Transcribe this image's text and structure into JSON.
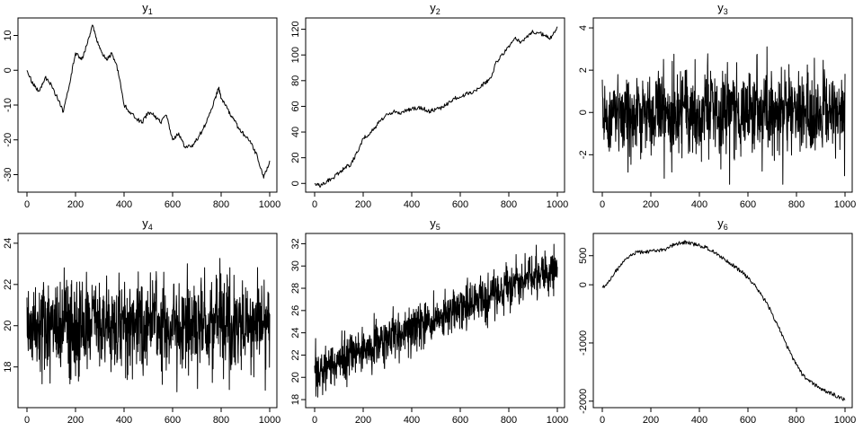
{
  "chart_data": [
    {
      "type": "line",
      "title": "y1",
      "title_main": "y",
      "title_sub": "1",
      "xlim": [
        0,
        1000
      ],
      "ylim": [
        -34,
        14
      ],
      "xticks": [
        0,
        200,
        400,
        600,
        800,
        1000
      ],
      "xtick_labels": [
        "0",
        "200",
        "400",
        "600",
        "800",
        "1000"
      ],
      "yticks": [
        10,
        0,
        -10,
        -20,
        -30
      ],
      "ytick_labels": [
        "10",
        "0",
        "-10",
        "-20",
        "-30"
      ],
      "series": [
        {
          "x": [
            0,
            25,
            50,
            75,
            100,
            125,
            150,
            175,
            200,
            225,
            250,
            270,
            290,
            310,
            330,
            350,
            375,
            400,
            425,
            450,
            475,
            500,
            525,
            550,
            575,
            600,
            625,
            650,
            675,
            700,
            725,
            750,
            775,
            790,
            800,
            825,
            850,
            875,
            900,
            925,
            950,
            975,
            1000
          ],
          "y": [
            0,
            -4,
            -6,
            -2,
            -4,
            -8,
            -12,
            -4,
            5,
            3,
            8,
            13,
            8,
            5,
            3,
            5,
            0,
            -10,
            -12,
            -14,
            -15,
            -12,
            -13,
            -15,
            -13,
            -20,
            -18,
            -22,
            -22,
            -20,
            -17,
            -13,
            -8,
            -5,
            -8,
            -11,
            -14,
            -17,
            -19,
            -21,
            -25,
            -31,
            -26
          ]
        }
      ],
      "grid": false,
      "box": true
    },
    {
      "type": "line",
      "title": "y2",
      "title_main": "y",
      "title_sub": "2",
      "xlim": [
        0,
        1000
      ],
      "ylim": [
        -4,
        126
      ],
      "xticks": [
        0,
        200,
        400,
        600,
        800,
        1000
      ],
      "xtick_labels": [
        "0",
        "200",
        "400",
        "600",
        "800",
        "1000"
      ],
      "yticks": [
        0,
        20,
        40,
        60,
        80,
        100,
        120
      ],
      "ytick_labels": [
        "0",
        "20",
        "40",
        "60",
        "80",
        "100",
        "120"
      ],
      "series": [
        {
          "x": [
            0,
            25,
            50,
            75,
            100,
            125,
            150,
            175,
            200,
            225,
            250,
            275,
            300,
            325,
            350,
            375,
            400,
            425,
            450,
            475,
            500,
            525,
            550,
            575,
            600,
            625,
            650,
            675,
            700,
            725,
            750,
            775,
            800,
            825,
            850,
            875,
            900,
            925,
            950,
            975,
            1000
          ],
          "y": [
            0,
            -2,
            2,
            4,
            8,
            12,
            15,
            24,
            35,
            38,
            44,
            50,
            54,
            56,
            54,
            57,
            58,
            59,
            58,
            56,
            58,
            59,
            62,
            66,
            67,
            70,
            70,
            74,
            78,
            82,
            95,
            100,
            107,
            113,
            110,
            115,
            118,
            117,
            115,
            113,
            122
          ]
        }
      ],
      "grid": false,
      "box": true
    },
    {
      "type": "line",
      "title": "y3",
      "title_main": "y",
      "title_sub": "3",
      "xlim": [
        0,
        1000
      ],
      "ylim": [
        -3.6,
        4.3
      ],
      "xticks": [
        0,
        200,
        400,
        600,
        800,
        1000
      ],
      "xtick_labels": [
        "0",
        "200",
        "400",
        "600",
        "800",
        "1000"
      ],
      "yticks": [
        4,
        2,
        0,
        -2
      ],
      "ytick_labels": [
        "4",
        "2",
        "0",
        "-2"
      ],
      "noise": {
        "n": 1000,
        "mean": 0,
        "sd": 1.0,
        "min": -3.4,
        "max": 3.9,
        "seed": 3
      },
      "grid": false,
      "box": true
    },
    {
      "type": "line",
      "title": "y4",
      "title_main": "y",
      "title_sub": "4",
      "xlim": [
        0,
        1000
      ],
      "ylim": [
        16.2,
        24.3
      ],
      "xticks": [
        0,
        200,
        400,
        600,
        800,
        1000
      ],
      "xtick_labels": [
        "0",
        "200",
        "400",
        "600",
        "800",
        "1000"
      ],
      "yticks": [
        24,
        22,
        20,
        18
      ],
      "ytick_labels": [
        "24",
        "22",
        "20",
        "18"
      ],
      "noise": {
        "n": 1000,
        "mean": 20,
        "sd": 1.1,
        "min": 16.5,
        "max": 23.9,
        "seed": 4
      },
      "grid": false,
      "box": true
    },
    {
      "type": "line",
      "title": "y5",
      "title_main": "y",
      "title_sub": "5",
      "xlim": [
        0,
        1000
      ],
      "ylim": [
        17.6,
        32.6
      ],
      "xticks": [
        0,
        200,
        400,
        600,
        800,
        1000
      ],
      "xtick_labels": [
        "0",
        "200",
        "400",
        "600",
        "800",
        "1000"
      ],
      "yticks": [
        18,
        20,
        22,
        24,
        26,
        28,
        30,
        32
      ],
      "ytick_labels": [
        "18",
        "20",
        "22",
        "24",
        "26",
        "28",
        "30",
        "32"
      ],
      "noise": {
        "n": 1000,
        "mean_start": 20.5,
        "mean_end": 30.0,
        "sd": 1.0,
        "min": 17.9,
        "max": 32.0,
        "seed": 5
      },
      "grid": false,
      "box": true
    },
    {
      "type": "line",
      "title": "y6",
      "title_main": "y",
      "title_sub": "6",
      "xlim": [
        0,
        1000
      ],
      "ylim": [
        -2050,
        820
      ],
      "xticks": [
        0,
        200,
        400,
        600,
        800,
        1000
      ],
      "xtick_labels": [
        "0",
        "200",
        "400",
        "600",
        "800",
        "1000"
      ],
      "yticks": [
        500,
        0,
        -1000,
        -2000
      ],
      "ytick_labels": [
        "500",
        "0",
        "-1000",
        "-2000"
      ],
      "series": [
        {
          "x": [
            0,
            25,
            50,
            75,
            100,
            125,
            150,
            175,
            200,
            225,
            250,
            275,
            300,
            325,
            350,
            375,
            400,
            425,
            450,
            475,
            500,
            525,
            550,
            575,
            600,
            625,
            650,
            675,
            700,
            725,
            750,
            775,
            800,
            825,
            850,
            875,
            900,
            925,
            950,
            975,
            1000
          ],
          "y": [
            -50,
            50,
            200,
            330,
            450,
            530,
            560,
            560,
            580,
            590,
            600,
            640,
            700,
            720,
            730,
            700,
            680,
            640,
            580,
            520,
            460,
            380,
            300,
            220,
            120,
            0,
            -150,
            -300,
            -500,
            -720,
            -950,
            -1180,
            -1380,
            -1550,
            -1650,
            -1720,
            -1780,
            -1830,
            -1880,
            -1930,
            -1980
          ]
        }
      ],
      "grid": false,
      "box": true
    }
  ]
}
